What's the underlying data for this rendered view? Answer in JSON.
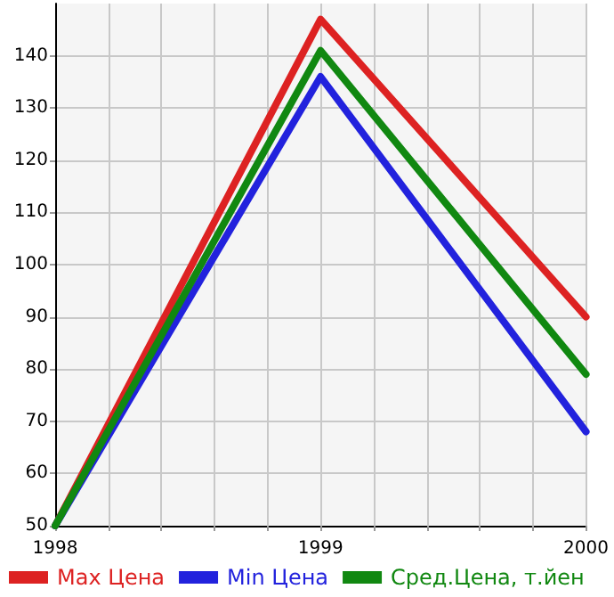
{
  "chart_data": {
    "type": "line",
    "x": [
      1998,
      1999,
      2000
    ],
    "series": [
      {
        "name": "Max Цена",
        "color": "#dd2222",
        "values": [
          50,
          147,
          90
        ]
      },
      {
        "name": "Min Цена",
        "color": "#2222dd",
        "values": [
          50,
          136,
          68
        ]
      },
      {
        "name": "Сред.Цена, т.йен",
        "color": "#118811",
        "values": [
          50,
          141,
          79
        ]
      }
    ],
    "xlim": [
      1998,
      2000
    ],
    "xticks": [
      1998,
      {
        "value": 1998.2,
        "label": null
      },
      {
        "value": 1998.4,
        "label": null
      },
      {
        "value": 1998.6,
        "label": null
      },
      {
        "value": 1998.8,
        "label": null
      },
      1999,
      {
        "value": 1999.2,
        "label": null
      },
      {
        "value": 1999.4,
        "label": null
      },
      {
        "value": 1999.6,
        "label": null
      },
      {
        "value": 1999.8,
        "label": null
      },
      2000
    ],
    "ylim": [
      50,
      150
    ],
    "yticks": [
      50,
      60,
      70,
      80,
      90,
      100,
      110,
      120,
      130,
      140
    ],
    "grid": true,
    "legend": "bottom left",
    "marker": "none",
    "line_style": "solid"
  }
}
